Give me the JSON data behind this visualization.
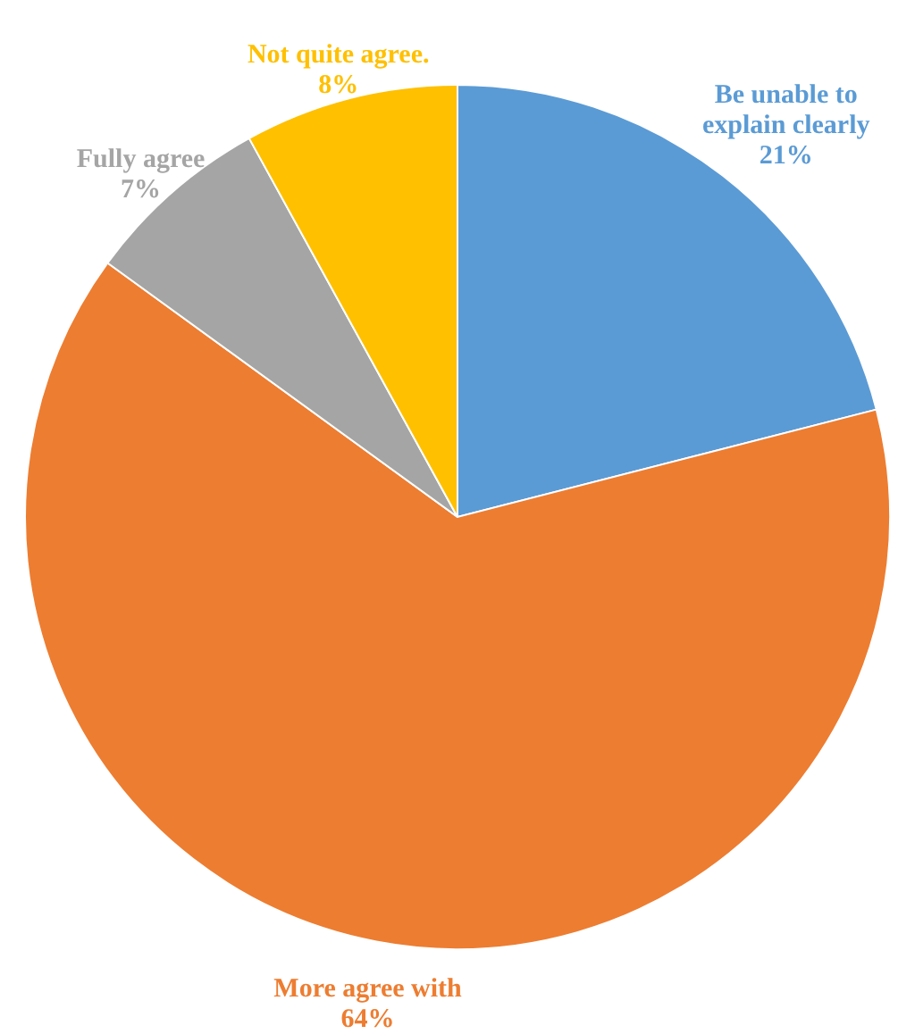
{
  "chart_data": {
    "type": "pie",
    "categories": [
      "Be unable to explain clearly",
      "More agree with",
      "Fully agree",
      "Not quite agree."
    ],
    "values": [
      21,
      64,
      7,
      8
    ],
    "colors": [
      "#5b9bd5",
      "#ed7d31",
      "#a5a5a5",
      "#ffc000"
    ],
    "value_labels": [
      "21%",
      "64%",
      "7%",
      "8%"
    ]
  }
}
